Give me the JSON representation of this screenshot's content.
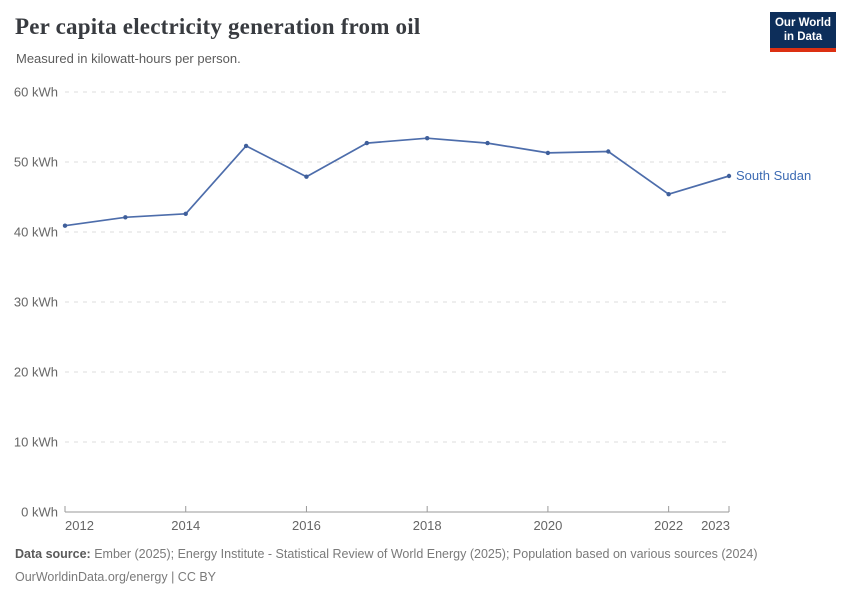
{
  "header": {
    "title": "Per capita electricity generation from oil",
    "subtitle": "Measured in kilowatt-hours per person."
  },
  "logo": {
    "line1": "Our World",
    "line2": "in Data",
    "background_color": "#0d2e5a",
    "stripe_color": "#dc3012"
  },
  "footer": {
    "source_label": "Data source:",
    "source_text": " Ember (2025); Energy Institute - Statistical Review of World Energy (2025); Population based on various sources (2024)",
    "license_text": "OurWorldinData.org/energy | CC BY"
  },
  "chart_data": {
    "type": "line",
    "title": "Per capita electricity generation from oil",
    "subtitle": "Measured in kilowatt-hours per person.",
    "x": [
      2012,
      2013,
      2014,
      2015,
      2016,
      2017,
      2018,
      2019,
      2020,
      2021,
      2022,
      2023
    ],
    "series": [
      {
        "name": "South Sudan",
        "values": [
          40.9,
          42.1,
          42.6,
          52.3,
          47.9,
          52.7,
          53.4,
          52.7,
          51.3,
          51.5,
          45.4,
          48.0
        ]
      }
    ],
    "xlabel": "",
    "ylabel": "",
    "ylim": [
      0,
      60
    ],
    "yticks": [
      0,
      10,
      20,
      30,
      40,
      50,
      60
    ],
    "ytick_suffix": " kWh",
    "xticks": [
      2012,
      2014,
      2016,
      2018,
      2020,
      2022,
      2023
    ],
    "grid": true,
    "grid_style": "dashed horizontal",
    "legend_position": "end-of-line label",
    "colors": {
      "line": "#4d6dab",
      "marker": "#3f5f9b",
      "label": "#3d6bb3",
      "grid": "#dcdcdc",
      "axis": "#9a9a9a",
      "tick_text": "#666666"
    }
  }
}
